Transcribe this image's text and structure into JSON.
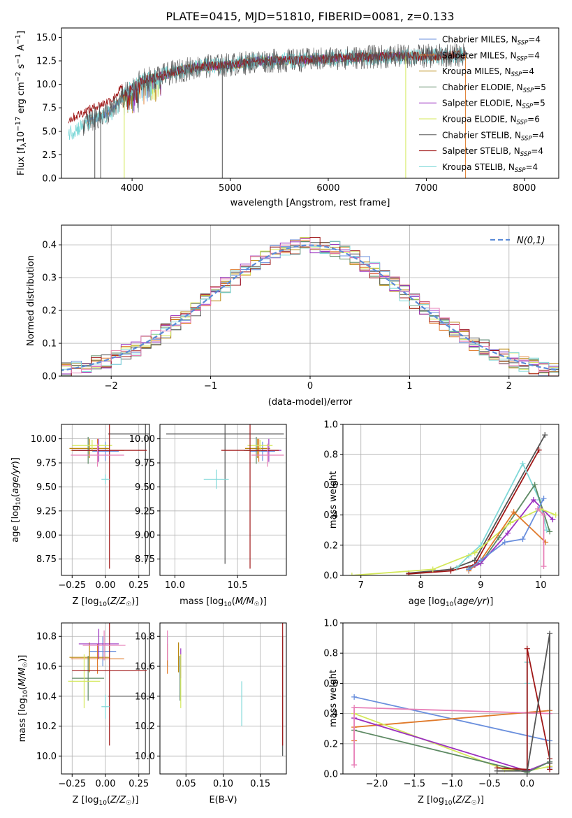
{
  "title": "PLATE=0415, MJD=51810, FIBERID=0081, z=0.133",
  "colors": {
    "chabrier_miles": "#6a8fdd",
    "salpeter_miles": "#e07a2b",
    "kroupa_miles": "#b8860b",
    "chabrier_elodie": "#5e8a64",
    "salpeter_elodie": "#9b30c0",
    "kroupa_elodie": "#d4e85a",
    "chabrier_stelib": "#555555",
    "salpeter_stelib": "#a01818",
    "kroupa_stelib": "#7fd8d8",
    "pink": "#e880b8",
    "normal": "#5b8bd8"
  },
  "chart_data": [
    {
      "id": "spectrum",
      "type": "line",
      "title": "PLATE=0415, MJD=51810, FIBERID=0081, z=0.133",
      "xlabel": "wavelength [Angstrom, rest frame]",
      "ylabel": "Flux [f_λ 10^-17 erg cm^-2 s^-1 A^-1]",
      "xlim": [
        3280,
        8350
      ],
      "ylim": [
        0,
        16
      ],
      "xticks": [
        "4000",
        "5000",
        "6000",
        "7000",
        "8000"
      ],
      "yticks": [
        "0.0",
        "2.5",
        "5.0",
        "7.5",
        "10.0",
        "12.5",
        "15.0"
      ],
      "grid": false,
      "legend_position": "right",
      "legend": [
        {
          "main": "Chabrier MILES, N",
          "sub": "SSP",
          "tail": "=4",
          "color": "chabrier_miles"
        },
        {
          "main": "Salpeter MILES, N",
          "sub": "SSP",
          "tail": "=4",
          "color": "salpeter_miles"
        },
        {
          "main": "Kroupa MILES, N",
          "sub": "SSP",
          "tail": "=4",
          "color": "kroupa_miles"
        },
        {
          "main": "Chabrier ELODIE, N",
          "sub": "SSP",
          "tail": "=5",
          "color": "chabrier_elodie"
        },
        {
          "main": "Salpeter ELODIE, N",
          "sub": "SSP",
          "tail": "=5",
          "color": "salpeter_elodie"
        },
        {
          "main": "Kroupa ELODIE, N",
          "sub": "SSP",
          "tail": "=6",
          "color": "kroupa_elodie"
        },
        {
          "main": "Chabrier STELIB, N",
          "sub": "SSP",
          "tail": "=4",
          "color": "chabrier_stelib"
        },
        {
          "main": "Salpeter STELIB, N",
          "sub": "SSP",
          "tail": "=4",
          "color": "salpeter_stelib"
        },
        {
          "main": "Kroupa STELIB, N",
          "sub": "SSP",
          "tail": "=4",
          "color": "kroupa_stelib"
        }
      ],
      "continuum_points": [
        [
          3350,
          5.0
        ],
        [
          3500,
          5.8
        ],
        [
          3650,
          6.5
        ],
        [
          3800,
          7.2
        ],
        [
          3950,
          9.2
        ],
        [
          4100,
          10.4
        ],
        [
          4300,
          10.9
        ],
        [
          4500,
          11.5
        ],
        [
          4700,
          11.9
        ],
        [
          4900,
          12.0
        ],
        [
          5100,
          12.2
        ],
        [
          5300,
          12.5
        ],
        [
          5500,
          12.5
        ],
        [
          5800,
          12.6
        ],
        [
          6100,
          12.8
        ],
        [
          6400,
          12.9
        ],
        [
          6700,
          13.0
        ],
        [
          7000,
          13.0
        ],
        [
          7300,
          13.1
        ]
      ]
    },
    {
      "id": "residuals",
      "type": "histogram",
      "xlabel": "(data-model)/error",
      "ylabel": "Normed distribution",
      "xlim": [
        -2.5,
        2.5
      ],
      "ylim": [
        0,
        0.46
      ],
      "xticks": [
        "−2",
        "−1",
        "0",
        "1",
        "2"
      ],
      "yticks": [
        "0.0",
        "0.1",
        "0.2",
        "0.3",
        "0.4"
      ],
      "grid": true,
      "legend_position": "top-right",
      "legend_label": "N(0,1)",
      "reference_curve": "standard normal density",
      "bin_width": 0.1
    },
    {
      "id": "age-vs-Z",
      "type": "scatter",
      "xlabel": "Z [log10(Z/Z☉)]",
      "ylabel": "age [log10(age/yr)]",
      "xlim": [
        -0.33,
        0.33
      ],
      "ylim": [
        8.58,
        10.15
      ],
      "xticks": [
        "−0.25",
        "0.00",
        "0.25"
      ],
      "yticks": [
        "8.75",
        "9.00",
        "9.25",
        "9.50",
        "9.75",
        "10.00"
      ],
      "grid": true,
      "points": [
        {
          "color": "chabrier_miles",
          "x": 0.0,
          "y": 9.87,
          "xerr": 0.1,
          "yerr": 0.1
        },
        {
          "color": "salpeter_miles",
          "x": -0.06,
          "y": 9.88,
          "xerr": 0.2,
          "yerr": 0.12
        },
        {
          "color": "kroupa_miles",
          "x": -0.12,
          "y": 9.9,
          "xerr": 0.15,
          "yerr": 0.1
        },
        {
          "color": "chabrier_elodie",
          "x": -0.13,
          "y": 9.88,
          "xerr": 0.12,
          "yerr": 0.14
        },
        {
          "color": "salpeter_elodie",
          "x": -0.05,
          "y": 9.88,
          "xerr": 0.15,
          "yerr": 0.12
        },
        {
          "color": "kroupa_elodie",
          "x": -0.1,
          "y": 9.93,
          "xerr": 0.15,
          "yerr": 0.06
        },
        {
          "color": "chabrier_stelib",
          "x": 0.3,
          "y": 10.05,
          "xerr": 0.28,
          "yerr": 1.35
        },
        {
          "color": "salpeter_stelib",
          "x": 0.03,
          "y": 9.88,
          "xerr": 0.28,
          "yerr": 1.23
        },
        {
          "color": "kroupa_stelib",
          "x": 0.0,
          "y": 9.58,
          "xerr": 0.03,
          "yerr": 0.05
        },
        {
          "color": "pink",
          "x": -0.06,
          "y": 9.83,
          "xerr": 0.2,
          "yerr": 0.12
        }
      ]
    },
    {
      "id": "age-vs-mass",
      "type": "scatter",
      "xlabel": "mass [log10(M/M☉)]",
      "ylabel": "",
      "xlim": [
        9.88,
        10.89
      ],
      "ylim": [
        8.58,
        10.15
      ],
      "xticks": [
        "10.0",
        "10.5"
      ],
      "yticks": [
        "8.75",
        "9.00",
        "9.25",
        "9.50",
        "9.75",
        "10.00"
      ],
      "grid": true,
      "points": [
        {
          "color": "chabrier_miles",
          "x": 10.7,
          "y": 9.87,
          "xerr": 0.1,
          "yerr": 0.1
        },
        {
          "color": "salpeter_miles",
          "x": 10.67,
          "y": 9.88,
          "xerr": 0.1,
          "yerr": 0.12
        },
        {
          "color": "kroupa_miles",
          "x": 10.66,
          "y": 9.9,
          "xerr": 0.1,
          "yerr": 0.1
        },
        {
          "color": "chabrier_elodie",
          "x": 10.65,
          "y": 9.88,
          "xerr": 0.1,
          "yerr": 0.14
        },
        {
          "color": "salpeter_elodie",
          "x": 10.75,
          "y": 9.88,
          "xerr": 0.1,
          "yerr": 0.12
        },
        {
          "color": "kroupa_elodie",
          "x": 10.68,
          "y": 9.93,
          "xerr": 0.1,
          "yerr": 0.06
        },
        {
          "color": "chabrier_stelib",
          "x": 10.4,
          "y": 10.05,
          "xerr": 0.47,
          "yerr": 1.35
        },
        {
          "color": "salpeter_stelib",
          "x": 10.6,
          "y": 9.88,
          "xerr": 0.23,
          "yerr": 1.23
        },
        {
          "color": "kroupa_stelib",
          "x": 10.33,
          "y": 9.58,
          "xerr": 0.1,
          "yerr": 0.1
        },
        {
          "color": "pink",
          "x": 10.74,
          "y": 9.83,
          "xerr": 0.13,
          "yerr": 0.12
        }
      ]
    },
    {
      "id": "weight-vs-age",
      "type": "line",
      "xlabel": "age [log10(age/yr)]",
      "ylabel": "mass weight",
      "xlim": [
        6.7,
        10.3
      ],
      "ylim": [
        0,
        1
      ],
      "xticks": [
        "7",
        "8",
        "9",
        "10"
      ],
      "yticks": [
        "0.0",
        "0.2",
        "0.4",
        "0.6",
        "0.8",
        "1.0"
      ],
      "grid": true,
      "series": [
        {
          "color": "chabrier_stelib",
          "x": [
            7.8,
            8.5,
            8.9,
            10.07
          ],
          "y": [
            0.015,
            0.04,
            0.1,
            0.93
          ]
        },
        {
          "color": "salpeter_stelib",
          "x": [
            7.8,
            8.5,
            8.9,
            9.97
          ],
          "y": [
            0.01,
            0.03,
            0.07,
            0.83
          ]
        },
        {
          "color": "kroupa_stelib",
          "x": [
            8.6,
            8.8,
            9.0,
            9.7,
            9.98,
            10.1
          ],
          "y": [
            0.05,
            0.13,
            0.2,
            0.74,
            0.5,
            0.3
          ]
        },
        {
          "color": "chabrier_elodie",
          "x": [
            8.8,
            9.0,
            9.3,
            9.9,
            10.15
          ],
          "y": [
            0.05,
            0.08,
            0.25,
            0.6,
            0.29
          ]
        },
        {
          "color": "salpeter_elodie",
          "x": [
            8.8,
            9.0,
            9.45,
            9.88,
            10.2
          ],
          "y": [
            0.04,
            0.08,
            0.28,
            0.5,
            0.37
          ]
        },
        {
          "color": "kroupa_elodie",
          "x": [
            6.85,
            8.2,
            8.9,
            9.5,
            10.0,
            10.25
          ],
          "y": [
            0.0,
            0.04,
            0.15,
            0.35,
            0.44,
            0.4
          ]
        },
        {
          "color": "salpeter_miles",
          "x": [
            8.8,
            9.0,
            9.55,
            10.08
          ],
          "y": [
            0.03,
            0.1,
            0.42,
            0.22
          ]
        },
        {
          "color": "chabrier_miles",
          "x": [
            8.8,
            9.0,
            9.4,
            9.7,
            10.05
          ],
          "y": [
            0.04,
            0.1,
            0.22,
            0.24,
            0.51
          ]
        },
        {
          "color": "pink",
          "x": [
            9.95,
            10.05,
            10.05
          ],
          "y": [
            0.44,
            0.4,
            0.06
          ]
        }
      ]
    },
    {
      "id": "mass-vs-Z",
      "type": "scatter",
      "xlabel": "Z [log10(Z/Z☉)]",
      "ylabel": "mass [log10(M/M☉)]",
      "xlim": [
        -0.33,
        0.33
      ],
      "ylim": [
        9.88,
        10.89
      ],
      "xticks": [
        "−0.25",
        "0.00",
        "0.25"
      ],
      "yticks": [
        "10.0",
        "10.2",
        "10.4",
        "10.6",
        "10.8"
      ],
      "grid": true,
      "points": [
        {
          "color": "chabrier_miles",
          "x": -0.02,
          "y": 10.7,
          "xerr": 0.1,
          "yerr": 0.1
        },
        {
          "color": "salpeter_miles",
          "x": -0.06,
          "y": 10.65,
          "xerr": 0.2,
          "yerr": 0.1
        },
        {
          "color": "kroupa_miles",
          "x": -0.12,
          "y": 10.66,
          "xerr": 0.15,
          "yerr": 0.1
        },
        {
          "color": "chabrier_elodie",
          "x": -0.13,
          "y": 10.52,
          "xerr": 0.12,
          "yerr": 0.15
        },
        {
          "color": "salpeter_elodie",
          "x": -0.05,
          "y": 10.75,
          "xerr": 0.15,
          "yerr": 0.1
        },
        {
          "color": "kroupa_elodie",
          "x": -0.16,
          "y": 10.5,
          "xerr": 0.12,
          "yerr": 0.18
        },
        {
          "color": "chabrier_stelib",
          "x": 0.3,
          "y": 10.4,
          "xerr": 0.28,
          "yerr": 0.4
        },
        {
          "color": "salpeter_stelib",
          "x": 0.03,
          "y": 10.57,
          "xerr": 0.28,
          "yerr": 0.5
        },
        {
          "color": "kroupa_stelib",
          "x": 0.0,
          "y": 10.33,
          "xerr": 0.03,
          "yerr": 0.08
        },
        {
          "color": "pink",
          "x": -0.01,
          "y": 10.74,
          "xerr": 0.16,
          "yerr": 0.1
        }
      ]
    },
    {
      "id": "mass-vs-EBV",
      "type": "scatter",
      "xlabel": "E(B-V)",
      "ylabel": "",
      "xlim": [
        0.015,
        0.185
      ],
      "ylim": [
        9.88,
        10.89
      ],
      "xticks": [
        "0.05",
        "0.10",
        "0.15"
      ],
      "yticks": [
        "10.0",
        "10.2",
        "10.4",
        "10.6",
        "10.8"
      ],
      "grid": true,
      "points": [
        {
          "color": "chabrier_miles",
          "x": 0.025,
          "y": 10.7,
          "xerr": 0,
          "yerr": 0.1
        },
        {
          "color": "salpeter_miles",
          "x": 0.025,
          "y": 10.65,
          "xerr": 0,
          "yerr": 0.1
        },
        {
          "color": "kroupa_miles",
          "x": 0.04,
          "y": 10.66,
          "xerr": 0,
          "yerr": 0.1
        },
        {
          "color": "chabrier_elodie",
          "x": 0.042,
          "y": 10.52,
          "xerr": 0,
          "yerr": 0.15
        },
        {
          "color": "salpeter_elodie",
          "x": 0.043,
          "y": 10.62,
          "xerr": 0,
          "yerr": 0.1
        },
        {
          "color": "kroupa_elodie",
          "x": 0.043,
          "y": 10.5,
          "xerr": 0,
          "yerr": 0.18
        },
        {
          "color": "chabrier_stelib",
          "x": 0.18,
          "y": 10.4,
          "xerr": 0,
          "yerr": 0.4
        },
        {
          "color": "salpeter_stelib",
          "x": 0.18,
          "y": 10.57,
          "xerr": 0,
          "yerr": 0.5
        },
        {
          "color": "kroupa_stelib",
          "x": 0.125,
          "y": 10.35,
          "xerr": 0,
          "yerr": 0.15
        },
        {
          "color": "pink",
          "x": 0.025,
          "y": 10.74,
          "xerr": 0,
          "yerr": 0.1
        }
      ]
    },
    {
      "id": "weight-vs-Z",
      "type": "line",
      "xlabel": "Z [log10(Z/Z☉)]",
      "ylabel": "mass weight",
      "xlim": [
        -2.45,
        0.42
      ],
      "ylim": [
        0,
        1
      ],
      "xticks": [
        "−2.0",
        "−1.5",
        "−1.0",
        "−0.5",
        "0.0",
        "0.5"
      ],
      "yticks": [
        "0.0",
        "0.2",
        "0.4",
        "0.6",
        "0.8",
        "1.0"
      ],
      "grid": true,
      "series": [
        {
          "color": "chabrier_miles",
          "x": [
            -2.3,
            0.3,
            0.3
          ],
          "y": [
            0.51,
            0.22,
            0.04
          ]
        },
        {
          "color": "salpeter_miles",
          "x": [
            -2.3,
            -2.3,
            0.3,
            0.3
          ],
          "y": [
            0.22,
            0.31,
            0.42,
            0.05
          ]
        },
        {
          "color": "kroupa_elodie",
          "x": [
            -2.3,
            -0.3,
            0.0,
            0.3
          ],
          "y": [
            0.4,
            0.03,
            0.02,
            0.05
          ]
        },
        {
          "color": "salpeter_elodie",
          "x": [
            -2.3,
            0.0,
            0.3
          ],
          "y": [
            0.37,
            0.02,
            0.08
          ]
        },
        {
          "color": "chabrier_elodie",
          "x": [
            -2.3,
            0.0,
            0.3
          ],
          "y": [
            0.29,
            0.01,
            0.08
          ]
        },
        {
          "color": "pink",
          "x": [
            -2.3,
            -2.3,
            0.3
          ],
          "y": [
            0.06,
            0.44,
            0.4
          ]
        },
        {
          "color": "kroupa_stelib",
          "x": [
            0.0,
            0.0,
            0.0
          ],
          "y": [
            0.02,
            0.6,
            0.74
          ]
        },
        {
          "color": "salpeter_stelib",
          "x": [
            -0.4,
            0.0,
            0.0,
            0.3,
            0.3
          ],
          "y": [
            0.04,
            0.03,
            0.83,
            0.1,
            0.03
          ]
        },
        {
          "color": "chabrier_stelib",
          "x": [
            -0.4,
            0.0,
            0.3,
            0.3
          ],
          "y": [
            0.02,
            0.02,
            0.93,
            0.07
          ]
        }
      ]
    }
  ]
}
